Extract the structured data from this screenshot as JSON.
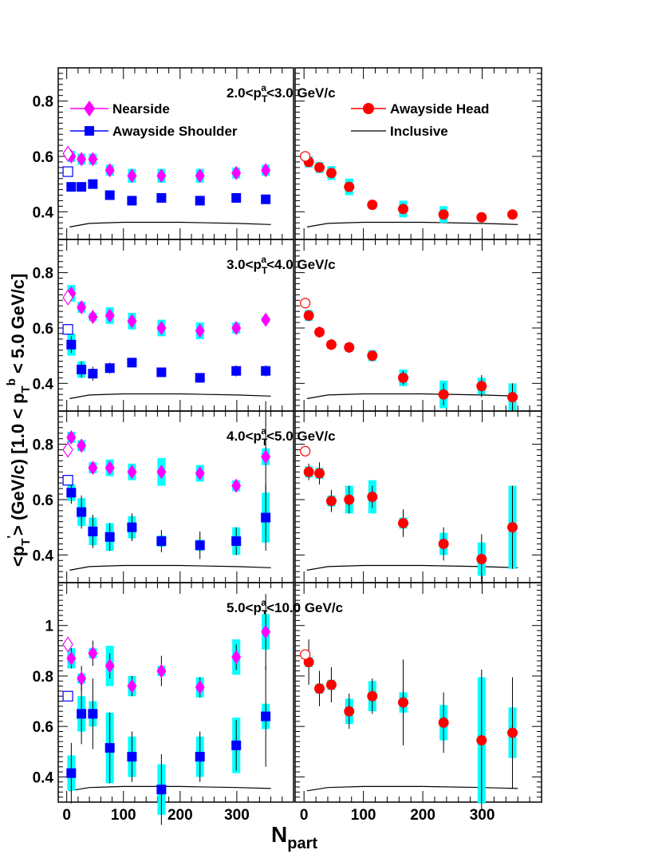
{
  "chart_data": {
    "type": "scatter",
    "ylabel": "<p'_T> (GeV/c) [1.0 < p^b_T < 5.0 GeV/c]",
    "xlabel": "N_part",
    "xlim": [
      -15,
      400
    ],
    "xticks": [
      "0",
      "100",
      "200",
      "300"
    ],
    "legend": {
      "left": [
        "Nearside",
        "Awayside Shoulder"
      ],
      "right": [
        "Awayside Head",
        "Inclusive"
      ]
    },
    "colors": {
      "nearside": "#ff00ff",
      "shoulder": "#0000ff",
      "head": "#ff0000",
      "systematic": "#00ffff",
      "inclusive": "#000000"
    },
    "panels": [
      {
        "label": "2.0<p^a_T<3.0 GeV/c",
        "label_main": "2.0<p",
        "label_sub": "T",
        "label_sup": "a",
        "label_rest": "<3.0 GeV/c",
        "ylim": [
          0.3,
          0.92
        ],
        "yticks": [
          "0.4",
          "0.6",
          "0.8"
        ],
        "series": {
          "nearside": {
            "x": [
              8,
              26,
              46,
              76,
              115,
              167,
              235,
              299,
              351
            ],
            "y": [
              0.6,
              0.59,
              0.59,
              0.55,
              0.53,
              0.53,
              0.53,
              0.54,
              0.55
            ],
            "err": [
              0.015,
              0.015,
              0.015,
              0.015,
              0.015,
              0.015,
              0.015,
              0.015,
              0.015
            ],
            "sys": [
              0.02,
              0.02,
              0.02,
              0.02,
              0.025,
              0.025,
              0.025,
              0.02,
              0.02
            ]
          },
          "shoulder": {
            "x": [
              8,
              26,
              46,
              76,
              115,
              167,
              235,
              299,
              351
            ],
            "y": [
              0.49,
              0.49,
              0.5,
              0.46,
              0.44,
              0.45,
              0.44,
              0.45,
              0.445
            ],
            "err": [
              0.015,
              0.015,
              0.015,
              0.01,
              0.01,
              0.01,
              0.01,
              0.01,
              0.01
            ],
            "sys": [
              0.01,
              0.01,
              0.01,
              0.01,
              0.01,
              0.01,
              0.01,
              0.01,
              0.01
            ]
          },
          "head": {
            "x": [
              8,
              26,
              46,
              76,
              115,
              167,
              235,
              299,
              351
            ],
            "y": [
              0.58,
              0.56,
              0.54,
              0.49,
              0.425,
              0.41,
              0.39,
              0.38,
              0.39
            ],
            "err": [
              0.015,
              0.015,
              0.015,
              0.015,
              0.01,
              0.01,
              0.01,
              0.01,
              0.01
            ],
            "sys": [
              0.02,
              0.02,
              0.025,
              0.03,
              0.015,
              0.03,
              0.03,
              0.01,
              0.01
            ]
          },
          "near_pp": {
            "x": 2,
            "y": 0.61
          },
          "shoulder_pp": {
            "x": 2,
            "y": 0.545
          },
          "head_pp": {
            "x": 2,
            "y": 0.6
          },
          "inclusive": {
            "x": [
              5,
              40,
              100,
              200,
              300,
              360
            ],
            "y": [
              0.345,
              0.358,
              0.362,
              0.362,
              0.358,
              0.354
            ]
          }
        }
      },
      {
        "label": "3.0<p^a_T<4.0 GeV/c",
        "label_main": "3.0<p",
        "label_sub": "T",
        "label_sup": "a",
        "label_rest": "<4.0 GeV/c",
        "ylim": [
          0.3,
          0.92
        ],
        "yticks": [
          "0.4",
          "0.6",
          "0.8"
        ],
        "series": {
          "nearside": {
            "x": [
              8,
              26,
              46,
              76,
              115,
              167,
              235,
              299,
              351
            ],
            "y": [
              0.725,
              0.675,
              0.64,
              0.645,
              0.625,
              0.6,
              0.59,
              0.6,
              0.63
            ],
            "err": [
              0.02,
              0.02,
              0.02,
              0.02,
              0.02,
              0.02,
              0.02,
              0.02,
              0.02
            ],
            "sys": [
              0.03,
              0.02,
              0.015,
              0.03,
              0.03,
              0.03,
              0.03,
              0.02,
              0.01
            ]
          },
          "shoulder": {
            "x": [
              8,
              26,
              46,
              76,
              115,
              167,
              235,
              299,
              351
            ],
            "y": [
              0.54,
              0.45,
              0.435,
              0.455,
              0.475,
              0.44,
              0.42,
              0.445,
              0.445
            ],
            "err": [
              0.03,
              0.03,
              0.025,
              0.02,
              0.015,
              0.015,
              0.015,
              0.02,
              0.02
            ],
            "sys": [
              0.04,
              0.03,
              0.01,
              0.01,
              0.01,
              0.01,
              0.01,
              0.01,
              0.01
            ]
          },
          "head": {
            "x": [
              8,
              26,
              46,
              76,
              115,
              167,
              235,
              299,
              351
            ],
            "y": [
              0.645,
              0.585,
              0.54,
              0.53,
              0.5,
              0.42,
              0.36,
              0.39,
              0.35
            ],
            "err": [
              0.02,
              0.02,
              0.02,
              0.02,
              0.02,
              0.025,
              0.04,
              0.04,
              0.05
            ],
            "sys": [
              0.02,
              0.015,
              0.015,
              0.015,
              0.02,
              0.03,
              0.05,
              0.03,
              0.05
            ]
          },
          "near_pp": {
            "x": 2,
            "y": 0.71
          },
          "shoulder_pp": {
            "x": 2,
            "y": 0.595
          },
          "head_pp": {
            "x": 2,
            "y": 0.69
          },
          "inclusive": {
            "x": [
              5,
              40,
              100,
              200,
              300,
              360
            ],
            "y": [
              0.345,
              0.358,
              0.362,
              0.362,
              0.358,
              0.354
            ]
          }
        }
      },
      {
        "label": "4.0<p^a_T<5.0 GeV/c",
        "label_main": "4.0<p",
        "label_sub": "T",
        "label_sup": "a",
        "label_rest": "<5.0 GeV/c",
        "ylim": [
          0.3,
          0.92
        ],
        "yticks": [
          "0.4",
          "0.6",
          "0.8"
        ],
        "series": {
          "nearside": {
            "x": [
              8,
              26,
              46,
              76,
              115,
              167,
              235,
              299,
              351
            ],
            "y": [
              0.825,
              0.795,
              0.715,
              0.715,
              0.7,
              0.7,
              0.695,
              0.65,
              0.755
            ],
            "err": [
              0.02,
              0.02,
              0.02,
              0.02,
              0.02,
              0.02,
              0.02,
              0.02,
              0.2
            ],
            "sys": [
              0.02,
              0.02,
              0.02,
              0.03,
              0.03,
              0.05,
              0.03,
              0.02,
              0.03
            ]
          },
          "shoulder": {
            "x": [
              8,
              26,
              46,
              76,
              115,
              167,
              235,
              299,
              351
            ],
            "y": [
              0.625,
              0.555,
              0.485,
              0.465,
              0.5,
              0.45,
              0.435,
              0.45,
              0.535
            ],
            "err": [
              0.04,
              0.06,
              0.06,
              0.05,
              0.05,
              0.04,
              0.05,
              0.05,
              0.12
            ],
            "sys": [
              0.03,
              0.05,
              0.05,
              0.05,
              0.04,
              0.02,
              0.02,
              0.05,
              0.09
            ]
          },
          "head": {
            "x": [
              8,
              26,
              46,
              76,
              115,
              167,
              235,
              299,
              351
            ],
            "y": [
              0.7,
              0.695,
              0.595,
              0.6,
              0.61,
              0.515,
              0.44,
              0.385,
              0.5
            ],
            "err": [
              0.03,
              0.04,
              0.04,
              0.05,
              0.04,
              0.05,
              0.06,
              0.09,
              0.15
            ],
            "sys": [
              0.02,
              0.02,
              0.02,
              0.05,
              0.06,
              0.02,
              0.04,
              0.06,
              0.15
            ]
          },
          "near_pp": {
            "x": 2,
            "y": 0.78
          },
          "shoulder_pp": {
            "x": 2,
            "y": 0.67
          },
          "head_pp": {
            "x": 2,
            "y": 0.775
          },
          "inclusive": {
            "x": [
              5,
              40,
              100,
              200,
              300,
              360
            ],
            "y": [
              0.345,
              0.358,
              0.362,
              0.362,
              0.358,
              0.354
            ]
          }
        }
      },
      {
        "label": "5.0<p^a_T<10.0 GeV/c",
        "label_main": "5.0<p",
        "label_sub": "T",
        "label_sup": "a",
        "label_rest": "<10.0 GeV/c",
        "ylim": [
          0.3,
          1.17
        ],
        "yticks": [
          "0.4",
          "0.6",
          "0.8",
          "1"
        ],
        "series": {
          "nearside": {
            "x": [
              8,
              26,
              46,
              76,
              115,
              167,
              235,
              299,
              351
            ],
            "y": [
              0.87,
              0.79,
              0.89,
              0.84,
              0.76,
              0.82,
              0.755,
              0.875,
              0.975
            ],
            "err": [
              0.04,
              0.05,
              0.05,
              0.05,
              0.04,
              0.06,
              0.04,
              0.05,
              0.15
            ],
            "sys": [
              0.04,
              0.02,
              0.02,
              0.08,
              0.04,
              0.02,
              0.04,
              0.07,
              0.07
            ]
          },
          "shoulder": {
            "x": [
              8,
              26,
              46,
              76,
              115,
              167,
              235,
              299,
              351
            ],
            "y": [
              0.415,
              0.65,
              0.65,
              0.515,
              0.48,
              0.35,
              0.48,
              0.525,
              0.64
            ],
            "err": [
              0.12,
              0.12,
              0.14,
              0.14,
              0.1,
              0.14,
              0.1,
              0.1,
              0.2
            ],
            "sys": [
              0.07,
              0.07,
              0.05,
              0.14,
              0.08,
              0.1,
              0.08,
              0.11,
              0.05
            ]
          },
          "head": {
            "x": [
              8,
              26,
              46,
              76,
              115,
              167,
              235,
              299,
              351
            ],
            "y": [
              0.855,
              0.75,
              0.765,
              0.66,
              0.72,
              0.695,
              0.615,
              0.545,
              0.575
            ],
            "err": [
              0.09,
              0.07,
              0.07,
              0.07,
              0.07,
              0.17,
              0.12,
              0.28,
              0.22
            ],
            "sys": [
              0.02,
              0.02,
              0.02,
              0.05,
              0.06,
              0.04,
              0.07,
              0.25,
              0.1
            ]
          },
          "near_pp": {
            "x": 2,
            "y": 0.925
          },
          "shoulder_pp": {
            "x": 2,
            "y": 0.72
          },
          "head_pp": {
            "x": 2,
            "y": 0.885
          },
          "inclusive": {
            "x": [
              5,
              40,
              100,
              200,
              300,
              360
            ],
            "y": [
              0.345,
              0.358,
              0.362,
              0.362,
              0.358,
              0.354
            ]
          }
        }
      }
    ]
  }
}
